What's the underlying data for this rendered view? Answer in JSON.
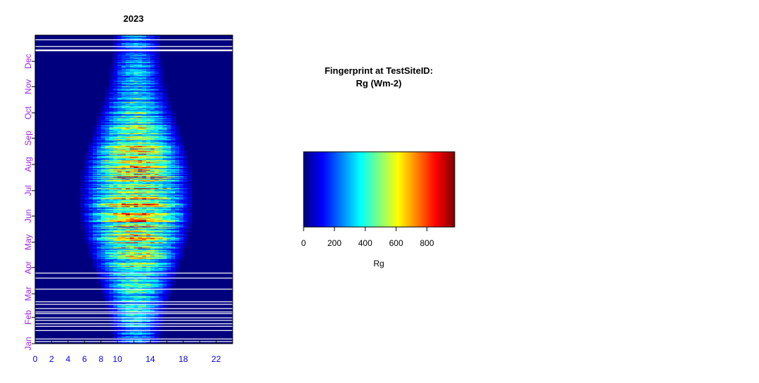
{
  "chart_data": [
    {
      "type": "heatmap",
      "title": "2023",
      "x": {
        "label": "",
        "range": [
          0,
          24
        ],
        "ticks": [
          0,
          2,
          4,
          6,
          8,
          10,
          12,
          14,
          16,
          18,
          20,
          22
        ],
        "tick_labels": [
          "0",
          "2",
          "4",
          "6",
          "8",
          "10",
          "14",
          "18",
          "22"
        ],
        "tick_label_values": [
          0,
          2,
          4,
          6,
          8,
          10,
          14,
          18,
          22
        ],
        "tick_label_color": "#0000ee"
      },
      "y": {
        "label": "",
        "range": [
          1,
          366
        ],
        "tick_labels": [
          "Jan",
          "Feb",
          "Mar",
          "Apr",
          "May",
          "Jun",
          "Jul",
          "Aug",
          "Sep",
          "Oct",
          "Nov",
          "Dec"
        ],
        "tick_label_values": [
          1,
          32,
          60,
          91,
          121,
          152,
          182,
          213,
          244,
          274,
          305,
          335
        ],
        "tick_label_color": "#a020f0"
      },
      "variable": "Rg",
      "value_range": [
        0,
        980
      ],
      "description_values": {
        "daylight_hours_summer": [
          5,
          19
        ],
        "daylight_hours_winter": [
          9,
          15
        ],
        "peak_value_approx": 950,
        "missing_day_ranges": [
          [
            1,
            8
          ],
          [
            20,
            52
          ],
          [
            65,
            80
          ],
          [
            340,
            358
          ]
        ]
      }
    },
    {
      "type": "colorbar",
      "title_line1": "Fingerprint at TestSiteID:",
      "title_line2": "Rg (Wm-2)",
      "xlabel": "Rg",
      "range": [
        0,
        980
      ],
      "ticks": [
        0,
        200,
        400,
        600,
        800
      ],
      "colormap": [
        "#00007f",
        "#0000ff",
        "#007fff",
        "#00ffff",
        "#7fff7f",
        "#ffff00",
        "#ff7f00",
        "#ff0000",
        "#7f0000"
      ]
    }
  ]
}
